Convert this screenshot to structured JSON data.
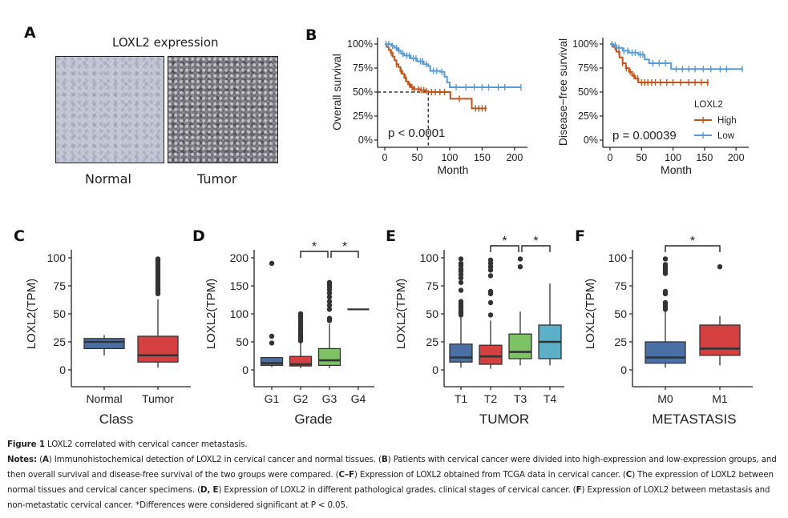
{
  "panels": {
    "A": {
      "letter": "A",
      "title": "LOXL2 expression",
      "images": [
        {
          "label": "Normal",
          "description": "IHC stain, light blue-gray, low LOXL2 staining"
        },
        {
          "label": "Tumor",
          "description": "IHC stain, dark brown-gray, high LOXL2 staining"
        }
      ]
    },
    "B": {
      "letter": "B"
    },
    "C": {
      "letter": "C"
    },
    "D": {
      "letter": "D"
    },
    "E": {
      "letter": "E"
    },
    "F": {
      "letter": "F"
    }
  },
  "chart_data": [
    {
      "id": "B-os",
      "type": "line",
      "subtype": "kaplan-meier",
      "title": "",
      "xlabel": "Month",
      "ylabel": "Overall survival",
      "xlim": [
        0,
        210
      ],
      "ylim": [
        0,
        1
      ],
      "xticks": [
        0,
        50,
        100,
        150,
        200
      ],
      "yticks": [
        "0%",
        "25%",
        "50%",
        "75%",
        "100%"
      ],
      "annotation": "p < 0.0001",
      "median_line": {
        "x": 67,
        "y": 0.5
      },
      "series": [
        {
          "name": "High",
          "color": "#c0551c",
          "points": [
            [
              0,
              1.0
            ],
            [
              3,
              0.97
            ],
            [
              6,
              0.94
            ],
            [
              9,
              0.91
            ],
            [
              12,
              0.87
            ],
            [
              15,
              0.83
            ],
            [
              18,
              0.79
            ],
            [
              21,
              0.76
            ],
            [
              24,
              0.72
            ],
            [
              27,
              0.69
            ],
            [
              30,
              0.65
            ],
            [
              33,
              0.61
            ],
            [
              36,
              0.58
            ],
            [
              40,
              0.55
            ],
            [
              44,
              0.53
            ],
            [
              50,
              0.53
            ],
            [
              55,
              0.52
            ],
            [
              62,
              0.51
            ],
            [
              67,
              0.5
            ],
            [
              100,
              0.5
            ],
            [
              101,
              0.43
            ],
            [
              133,
              0.43
            ],
            [
              134,
              0.33
            ],
            [
              157,
              0.33
            ]
          ],
          "censors": [
            10,
            18,
            25,
            32,
            38,
            42,
            46,
            52,
            56,
            60,
            64,
            72,
            78,
            85,
            92,
            115,
            140,
            145,
            150,
            155
          ]
        },
        {
          "name": "Low",
          "color": "#5b9bd5",
          "points": [
            [
              0,
              1.0
            ],
            [
              5,
              1.0
            ],
            [
              10,
              0.98
            ],
            [
              15,
              0.96
            ],
            [
              20,
              0.93
            ],
            [
              25,
              0.9
            ],
            [
              30,
              0.88
            ],
            [
              40,
              0.85
            ],
            [
              50,
              0.82
            ],
            [
              60,
              0.79
            ],
            [
              67,
              0.77
            ],
            [
              70,
              0.72
            ],
            [
              85,
              0.71
            ],
            [
              92,
              0.66
            ],
            [
              96,
              0.6
            ],
            [
              100,
              0.55
            ],
            [
              210,
              0.55
            ]
          ],
          "censors": [
            2,
            6,
            12,
            18,
            22,
            28,
            34,
            38,
            44,
            48,
            55,
            58,
            64,
            75,
            80,
            88,
            110,
            125,
            138,
            150,
            160,
            175,
            185,
            210
          ]
        }
      ],
      "legend": "none"
    },
    {
      "id": "B-dfs",
      "type": "line",
      "subtype": "kaplan-meier",
      "title": "",
      "xlabel": "Month",
      "ylabel": "Disease−free survival",
      "xlim": [
        0,
        210
      ],
      "ylim": [
        0,
        1
      ],
      "xticks": [
        0,
        50,
        100,
        150,
        200
      ],
      "yticks": [
        "0%",
        "25%",
        "50%",
        "75%",
        "100%"
      ],
      "annotation": "p = 0.00039",
      "legend_title": "LOXL2",
      "legend": "bottom-right",
      "series": [
        {
          "name": "High",
          "color": "#c0551c",
          "points": [
            [
              0,
              1.0
            ],
            [
              5,
              0.97
            ],
            [
              10,
              0.92
            ],
            [
              15,
              0.86
            ],
            [
              20,
              0.8
            ],
            [
              25,
              0.75
            ],
            [
              30,
              0.71
            ],
            [
              35,
              0.67
            ],
            [
              40,
              0.64
            ],
            [
              45,
              0.6
            ],
            [
              157,
              0.6
            ]
          ],
          "censors": [
            8,
            14,
            20,
            26,
            32,
            38,
            44,
            50,
            55,
            60,
            66,
            72,
            80,
            90,
            100,
            112,
            125,
            135,
            145,
            155
          ]
        },
        {
          "name": "Low",
          "color": "#5b9bd5",
          "points": [
            [
              0,
              1.0
            ],
            [
              5,
              0.99
            ],
            [
              10,
              0.96
            ],
            [
              20,
              0.93
            ],
            [
              30,
              0.91
            ],
            [
              45,
              0.89
            ],
            [
              55,
              0.84
            ],
            [
              62,
              0.8
            ],
            [
              95,
              0.8
            ],
            [
              97,
              0.74
            ],
            [
              210,
              0.74
            ]
          ],
          "censors": [
            3,
            8,
            14,
            22,
            28,
            35,
            40,
            48,
            52,
            68,
            78,
            88,
            105,
            115,
            125,
            135,
            148,
            160,
            175,
            185,
            210
          ]
        }
      ]
    },
    {
      "id": "C",
      "type": "box",
      "xlabel": "Class",
      "ylabel": "LOXL2(TPM)",
      "ylim": [
        0,
        100
      ],
      "yticks": [
        0,
        25,
        50,
        75,
        100
      ],
      "categories": [
        "Normal",
        "Tumor"
      ],
      "colors": [
        "#4a6fa5",
        "#d43f3f"
      ],
      "boxes": [
        {
          "min": 13,
          "q1": 19,
          "median": 25,
          "q3": 28,
          "max": 31,
          "outliers": []
        },
        {
          "min": 2,
          "q1": 7,
          "median": 13,
          "q3": 30,
          "max": 63,
          "outliers": [
            68,
            70,
            72,
            74,
            76,
            78,
            80,
            82,
            84,
            86,
            88,
            90,
            92,
            94,
            96,
            98,
            99
          ]
        }
      ],
      "significance": []
    },
    {
      "id": "D",
      "type": "box",
      "xlabel": "Grade",
      "ylabel": "LOXL2(TPM)",
      "ylim": [
        0,
        200
      ],
      "yticks": [
        0,
        50,
        100,
        150,
        200
      ],
      "categories": [
        "G1",
        "G2",
        "G3",
        "G4"
      ],
      "colors": [
        "#4a6fa5",
        "#d43f3f",
        "#7dc264",
        "#5bb0c8"
      ],
      "boxes": [
        {
          "min": 5,
          "q1": 8,
          "median": 12,
          "q3": 22,
          "max": 22,
          "outliers": [
            48,
            60,
            190
          ]
        },
        {
          "min": 3,
          "q1": 7,
          "median": 10,
          "q3": 24,
          "max": 50,
          "outliers": [
            52,
            56,
            60,
            64,
            68,
            72,
            76,
            80,
            84,
            88,
            92,
            96,
            100
          ]
        },
        {
          "min": 3,
          "q1": 8,
          "median": 17,
          "q3": 38,
          "max": 82,
          "outliers": [
            88,
            92,
            108,
            115,
            122,
            130,
            137,
            143,
            148,
            152,
            156
          ]
        },
        {
          "min": 108,
          "q1": 108,
          "median": 108,
          "q3": 108,
          "max": 108,
          "outliers": []
        }
      ],
      "significance": [
        {
          "from": "G2",
          "to": "G3",
          "label": "*"
        },
        {
          "from": "G3",
          "to": "G4",
          "label": "*"
        }
      ]
    },
    {
      "id": "E",
      "type": "box",
      "xlabel": "TUMOR",
      "ylabel": "LOXL2(TPM)",
      "ylim": [
        0,
        100
      ],
      "yticks": [
        0,
        25,
        50,
        75,
        100
      ],
      "categories": [
        "T1",
        "T2",
        "T3",
        "T4"
      ],
      "colors": [
        "#4a6fa5",
        "#d43f3f",
        "#7dc264",
        "#5bb0c8"
      ],
      "boxes": [
        {
          "min": 2,
          "q1": 7,
          "median": 11,
          "q3": 23,
          "max": 47,
          "outliers": [
            49,
            51,
            53,
            55,
            57,
            59,
            61,
            71,
            78,
            82,
            85,
            88,
            90,
            93,
            95,
            99
          ]
        },
        {
          "min": 1,
          "q1": 5,
          "median": 12,
          "q3": 22,
          "max": 44,
          "outliers": [
            49,
            60,
            68,
            70,
            84,
            89,
            92,
            95,
            98
          ]
        },
        {
          "min": 4,
          "q1": 10,
          "median": 16,
          "q3": 32,
          "max": 52,
          "outliers": [
            92,
            99
          ]
        },
        {
          "min": 4,
          "q1": 10,
          "median": 25,
          "q3": 40,
          "max": 77,
          "outliers": []
        }
      ],
      "significance": [
        {
          "from": "T2",
          "to": "T3",
          "label": "*"
        },
        {
          "from": "T3",
          "to": "T4",
          "label": "*"
        }
      ]
    },
    {
      "id": "F",
      "type": "box",
      "xlabel": "METASTASIS",
      "ylabel": "LOXL2(TPM)",
      "ylim": [
        0,
        100
      ],
      "yticks": [
        0,
        25,
        50,
        75,
        100
      ],
      "categories": [
        "M0",
        "M1"
      ],
      "colors": [
        "#4a6fa5",
        "#d43f3f"
      ],
      "boxes": [
        {
          "min": 2,
          "q1": 6,
          "median": 11,
          "q3": 25,
          "max": 52,
          "outliers": [
            54,
            56,
            58,
            60,
            68,
            70,
            86,
            88,
            90,
            92,
            94,
            99
          ]
        },
        {
          "min": 4,
          "q1": 13,
          "median": 19,
          "q3": 40,
          "max": 48,
          "outliers": [
            92
          ]
        }
      ],
      "significance": [
        {
          "from": "M0",
          "to": "M1",
          "label": "*"
        }
      ]
    }
  ],
  "caption": {
    "figure_label": "Figure 1",
    "figure_title": "LOXL2 correlated with cervical cancer metastasis.",
    "notes_label": "Notes:",
    "segments": [
      {
        "bold": false,
        "text": " ("
      },
      {
        "bold": true,
        "text": "A"
      },
      {
        "bold": false,
        "text": ") Immunohistochemical detection of LOXL2 in cervical cancer and normal tissues. ("
      },
      {
        "bold": true,
        "text": "B"
      },
      {
        "bold": false,
        "text": ") Patients with cervical cancer were divided into high-expression and low-expression groups, and then overall survival and disease-free survival of the two groups were compared. ("
      },
      {
        "bold": true,
        "text": "C–F"
      },
      {
        "bold": false,
        "text": ") Expression of LOXL2 obtained from TCGA data in cervical cancer. ("
      },
      {
        "bold": true,
        "text": "C"
      },
      {
        "bold": false,
        "text": ") The expression of LOXL2 between normal tissues and cervical cancer specimens. ("
      },
      {
        "bold": true,
        "text": "D, E"
      },
      {
        "bold": false,
        "text": ") Expression of LOXL2 in different pathological grades, clinical stages of cervical cancer. ("
      },
      {
        "bold": true,
        "text": "F"
      },
      {
        "bold": false,
        "text": ") Expression of LOXL2 between metastasis and non-metastatic cervical cancer. *Differences were considered significant at P < 0.05."
      }
    ]
  }
}
